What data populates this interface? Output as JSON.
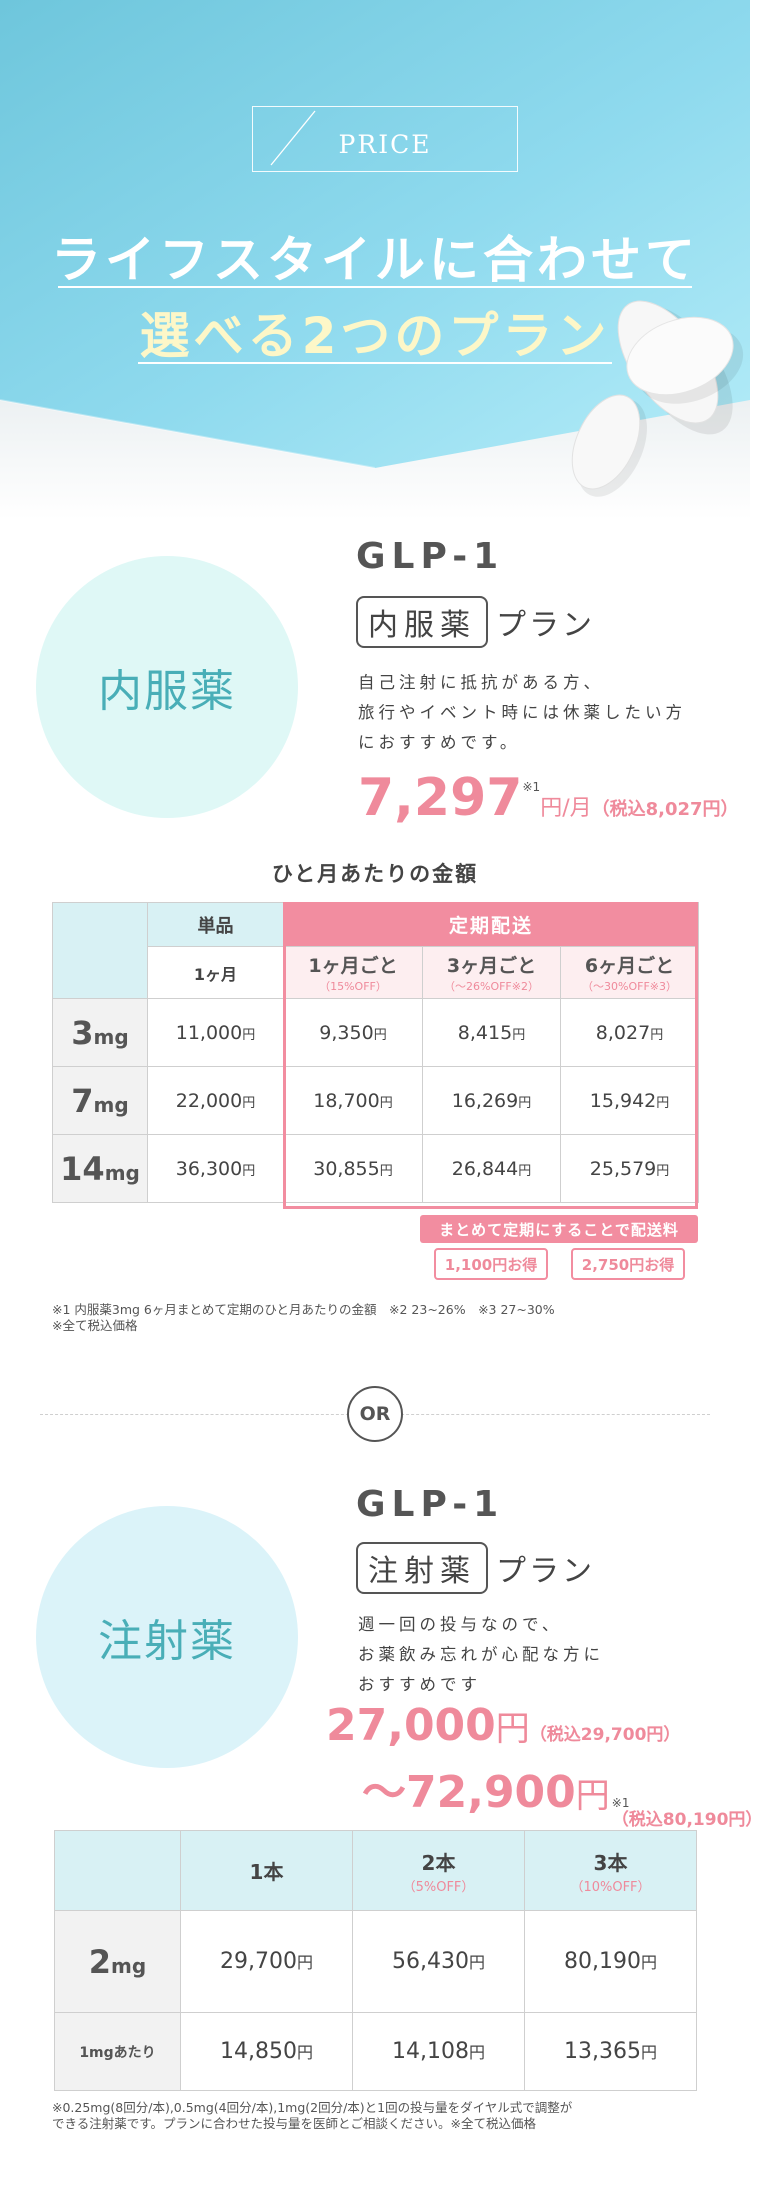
{
  "hero": {
    "badge": "PRICE",
    "line1": "ライフスタイルに合わせて",
    "line2": "選べる2つのプラン"
  },
  "oral": {
    "circle_label": "内服薬",
    "glp": "GLP-1",
    "box": "内服薬",
    "plan": "プラン",
    "desc": [
      "自己注射に抵抗がある方、",
      "旅行やイベント時には休薬したい方",
      "におすすめです。"
    ],
    "price": "7,297",
    "price_note": "※1",
    "unit": "円/月",
    "tax": "（税込8,027円）",
    "table_title": "ひと月あたりの金額",
    "col_single": "単品",
    "col_subscription": "定期配送",
    "sub_1month": "1ヶ月",
    "subcols": [
      {
        "label": "1ヶ月ごと",
        "off": "（15%OFF）"
      },
      {
        "label": "3ヶ月ごと",
        "off": "（～26%OFF※2）"
      },
      {
        "label": "6ヶ月ごと",
        "off": "（～30%OFF※3）"
      }
    ],
    "rows": [
      {
        "dose": "3",
        "unit": "mg",
        "single": "11,000",
        "m1": "9,350",
        "m3": "8,415",
        "m6": "8,027"
      },
      {
        "dose": "7",
        "unit": "mg",
        "single": "22,000",
        "m1": "18,700",
        "m3": "16,269",
        "m6": "15,942"
      },
      {
        "dose": "14",
        "unit": "mg",
        "single": "36,300",
        "m1": "30,855",
        "m3": "26,844",
        "m6": "25,579"
      }
    ],
    "yen": "円",
    "shipping_banner": "まとめて定期にすることで配送料",
    "save1": "1,100円お得",
    "save2": "2,750円お得",
    "notes": [
      "※1 内服薬3mg 6ヶ月まとめて定期のひと月あたりの金額　※2 23~26%　※3 27~30%",
      "※全て税込価格"
    ]
  },
  "or_label": "OR",
  "injection": {
    "circle_label": "注射薬",
    "glp": "GLP-1",
    "box": "注射薬",
    "plan": "プラン",
    "desc": [
      "週一回の投与なので、",
      "お薬飲み忘れが心配な方に",
      "おすすめです"
    ],
    "price_from": "27,000",
    "unit": "円",
    "tax_from": "（税込29,700円）",
    "price_to": "～72,900",
    "price_note": "※1",
    "tax_to": "（税込80,190円）",
    "cols": [
      {
        "label": "1本",
        "off": ""
      },
      {
        "label": "2本",
        "off": "（5%OFF）"
      },
      {
        "label": "3本",
        "off": "（10%OFF）"
      }
    ],
    "row1": {
      "dose": "2",
      "unit": "mg",
      "v1": "29,700",
      "v2": "56,430",
      "v3": "80,190"
    },
    "row2": {
      "label": "1mgあたり",
      "v1": "14,850",
      "v2": "14,108",
      "v3": "13,365"
    },
    "yen": "円",
    "notes": [
      "※0.25mg(8回分/本),0.5mg(4回分/本),1mg(2回分/本)と1回の投与量をダイヤル式で調整が",
      "できる注射薬です。プランに合わせた投与量を医師とご相談ください。※全て税込価格"
    ]
  },
  "colors": {
    "accent_pink": "#ef8a9b",
    "teal": "#49aeb7",
    "hero_blue": "#9fe0f0"
  }
}
